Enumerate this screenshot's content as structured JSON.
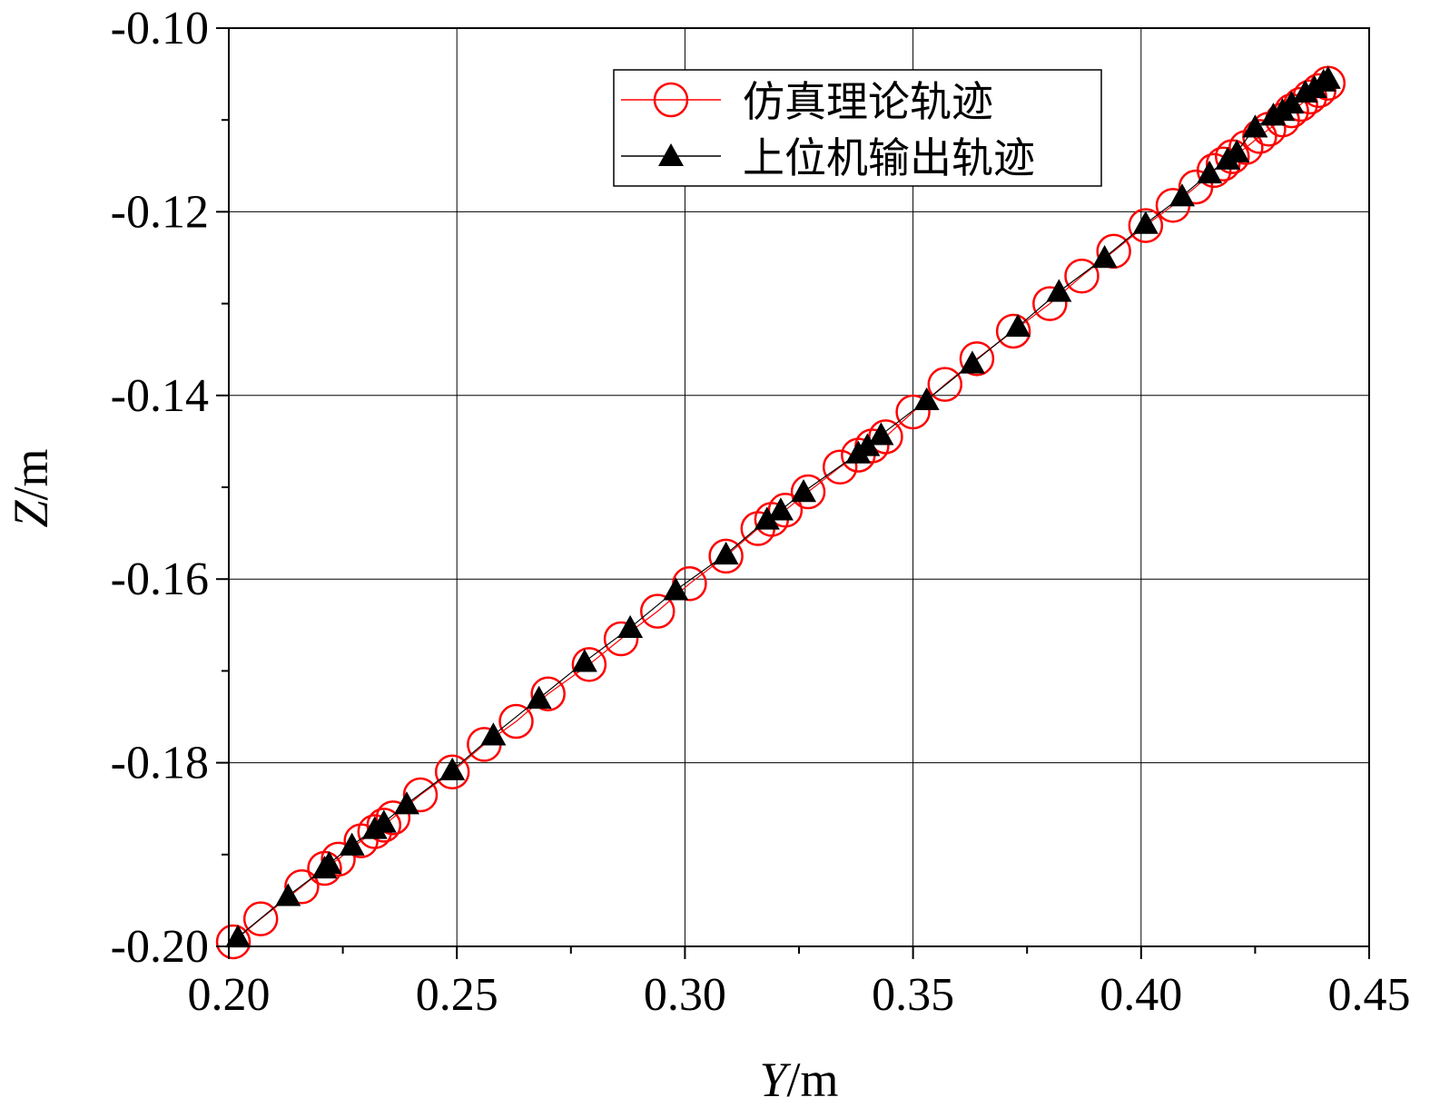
{
  "chart_data": {
    "type": "scatter",
    "xlabel": {
      "var": "Y",
      "unit": "/m"
    },
    "ylabel": {
      "var": "Z",
      "unit": "/m"
    },
    "xlim": [
      0.2,
      0.45
    ],
    "ylim": [
      -0.2,
      -0.1
    ],
    "xticks": [
      "0.20",
      "0.25",
      "0.30",
      "0.35",
      "0.40",
      "0.45"
    ],
    "yticks": [
      "-0.10",
      "-0.12",
      "-0.14",
      "-0.16",
      "-0.18",
      "-0.20"
    ],
    "grid": true,
    "legend_position": "top-right",
    "series": [
      {
        "name": "仿真理论轨迹",
        "marker": "circle-open",
        "color": "#ff0000",
        "line_color": "#ff0000",
        "x": [
          0.201,
          0.207,
          0.216,
          0.221,
          0.224,
          0.229,
          0.232,
          0.234,
          0.236,
          0.242,
          0.249,
          0.256,
          0.263,
          0.27,
          0.286,
          0.279,
          0.294,
          0.301,
          0.309,
          0.316,
          0.319,
          0.322,
          0.327,
          0.334,
          0.338,
          0.341,
          0.344,
          0.35,
          0.357,
          0.364,
          0.372,
          0.38,
          0.387,
          0.394,
          0.401,
          0.407,
          0.412,
          0.416,
          0.418,
          0.42,
          0.423,
          0.426,
          0.428,
          0.431,
          0.433,
          0.435,
          0.437,
          0.439,
          0.441
        ],
        "y": [
          -0.1995,
          -0.197,
          -0.1935,
          -0.1915,
          -0.1905,
          -0.1885,
          -0.1875,
          -0.1868,
          -0.186,
          -0.1835,
          -0.181,
          -0.178,
          -0.1755,
          -0.1725,
          -0.1665,
          -0.1693,
          -0.1635,
          -0.1605,
          -0.1575,
          -0.1545,
          -0.1535,
          -0.1525,
          -0.1505,
          -0.1478,
          -0.1465,
          -0.1455,
          -0.1445,
          -0.1418,
          -0.1388,
          -0.136,
          -0.133,
          -0.13,
          -0.127,
          -0.1243,
          -0.1215,
          -0.1193,
          -0.1173,
          -0.1155,
          -0.1148,
          -0.114,
          -0.113,
          -0.1118,
          -0.111,
          -0.11,
          -0.109,
          -0.1083,
          -0.1075,
          -0.1068,
          -0.106
        ]
      },
      {
        "name": "上位机输出轨迹",
        "marker": "triangle-filled",
        "color": "#000000",
        "line_color": "#000000",
        "x": [
          0.202,
          0.213,
          0.221,
          0.222,
          0.227,
          0.232,
          0.234,
          0.239,
          0.249,
          0.258,
          0.268,
          0.278,
          0.288,
          0.298,
          0.309,
          0.318,
          0.321,
          0.326,
          0.338,
          0.34,
          0.343,
          0.353,
          0.363,
          0.373,
          0.382,
          0.392,
          0.401,
          0.409,
          0.415,
          0.419,
          0.421,
          0.425,
          0.429,
          0.431,
          0.433,
          0.436,
          0.438,
          0.44,
          0.441
        ],
        "y": [
          -0.199,
          -0.1945,
          -0.1915,
          -0.191,
          -0.189,
          -0.1872,
          -0.1865,
          -0.1845,
          -0.1808,
          -0.177,
          -0.173,
          -0.169,
          -0.1653,
          -0.1612,
          -0.1573,
          -0.1535,
          -0.1525,
          -0.1505,
          -0.1463,
          -0.1455,
          -0.1443,
          -0.1405,
          -0.1365,
          -0.1325,
          -0.1287,
          -0.125,
          -0.1213,
          -0.1183,
          -0.1158,
          -0.1143,
          -0.1135,
          -0.1108,
          -0.1095,
          -0.109,
          -0.1082,
          -0.107,
          -0.1065,
          -0.1058,
          -0.1055
        ]
      }
    ]
  }
}
